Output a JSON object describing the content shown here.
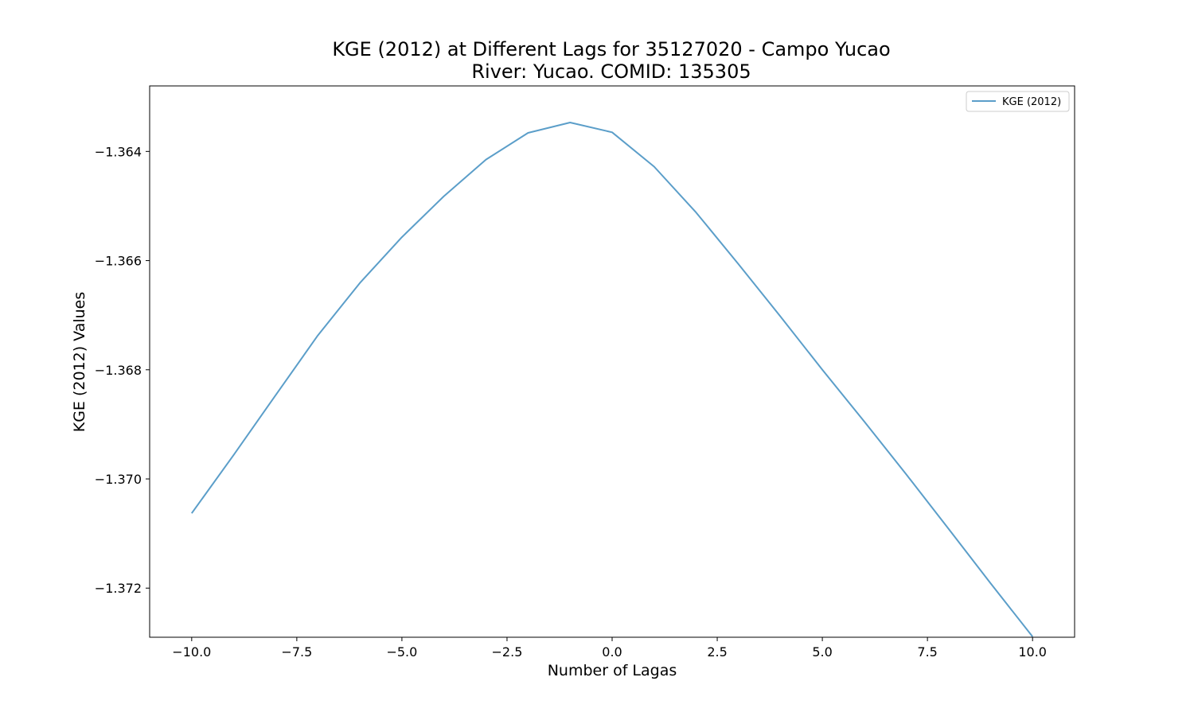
{
  "chart_data": {
    "type": "line",
    "title_line1": "KGE (2012) at Different Lags for 35127020 - Campo Yucao",
    "title_line2": "River: Yucao. COMID: 135305",
    "xlabel": "Number of Lagas",
    "ylabel": "KGE (2012) Values",
    "xlim": [
      -11.0,
      11.0
    ],
    "ylim": [
      -1.3729,
      -1.3628
    ],
    "xticks": [
      -10.0,
      -7.5,
      -5.0,
      -2.5,
      0.0,
      2.5,
      5.0,
      7.5,
      10.0
    ],
    "xtick_labels": [
      "−10.0",
      "−7.5",
      "−5.0",
      "−2.5",
      "0.0",
      "2.5",
      "5.0",
      "7.5",
      "10.0"
    ],
    "yticks": [
      -1.364,
      -1.366,
      -1.368,
      -1.37,
      -1.372
    ],
    "ytick_labels": [
      "−1.364",
      "−1.366",
      "−1.368",
      "−1.370",
      "−1.372"
    ],
    "legend_position": "upper right",
    "grid": false,
    "series": [
      {
        "name": "KGE (2012)",
        "color": "#5b9ec9",
        "x": [
          -10,
          -9,
          -8,
          -7,
          -6,
          -5,
          -4,
          -3,
          -2,
          -1,
          0,
          1,
          2,
          3,
          4,
          5,
          6,
          7,
          8,
          9,
          10
        ],
        "values": [
          -1.37063,
          -1.36956,
          -1.36846,
          -1.36737,
          -1.36641,
          -1.36557,
          -1.36482,
          -1.36415,
          -1.36366,
          -1.36347,
          -1.36365,
          -1.36428,
          -1.36512,
          -1.36606,
          -1.36702,
          -1.368,
          -1.36895,
          -1.36992,
          -1.37091,
          -1.37191,
          -1.37289
        ]
      }
    ]
  }
}
